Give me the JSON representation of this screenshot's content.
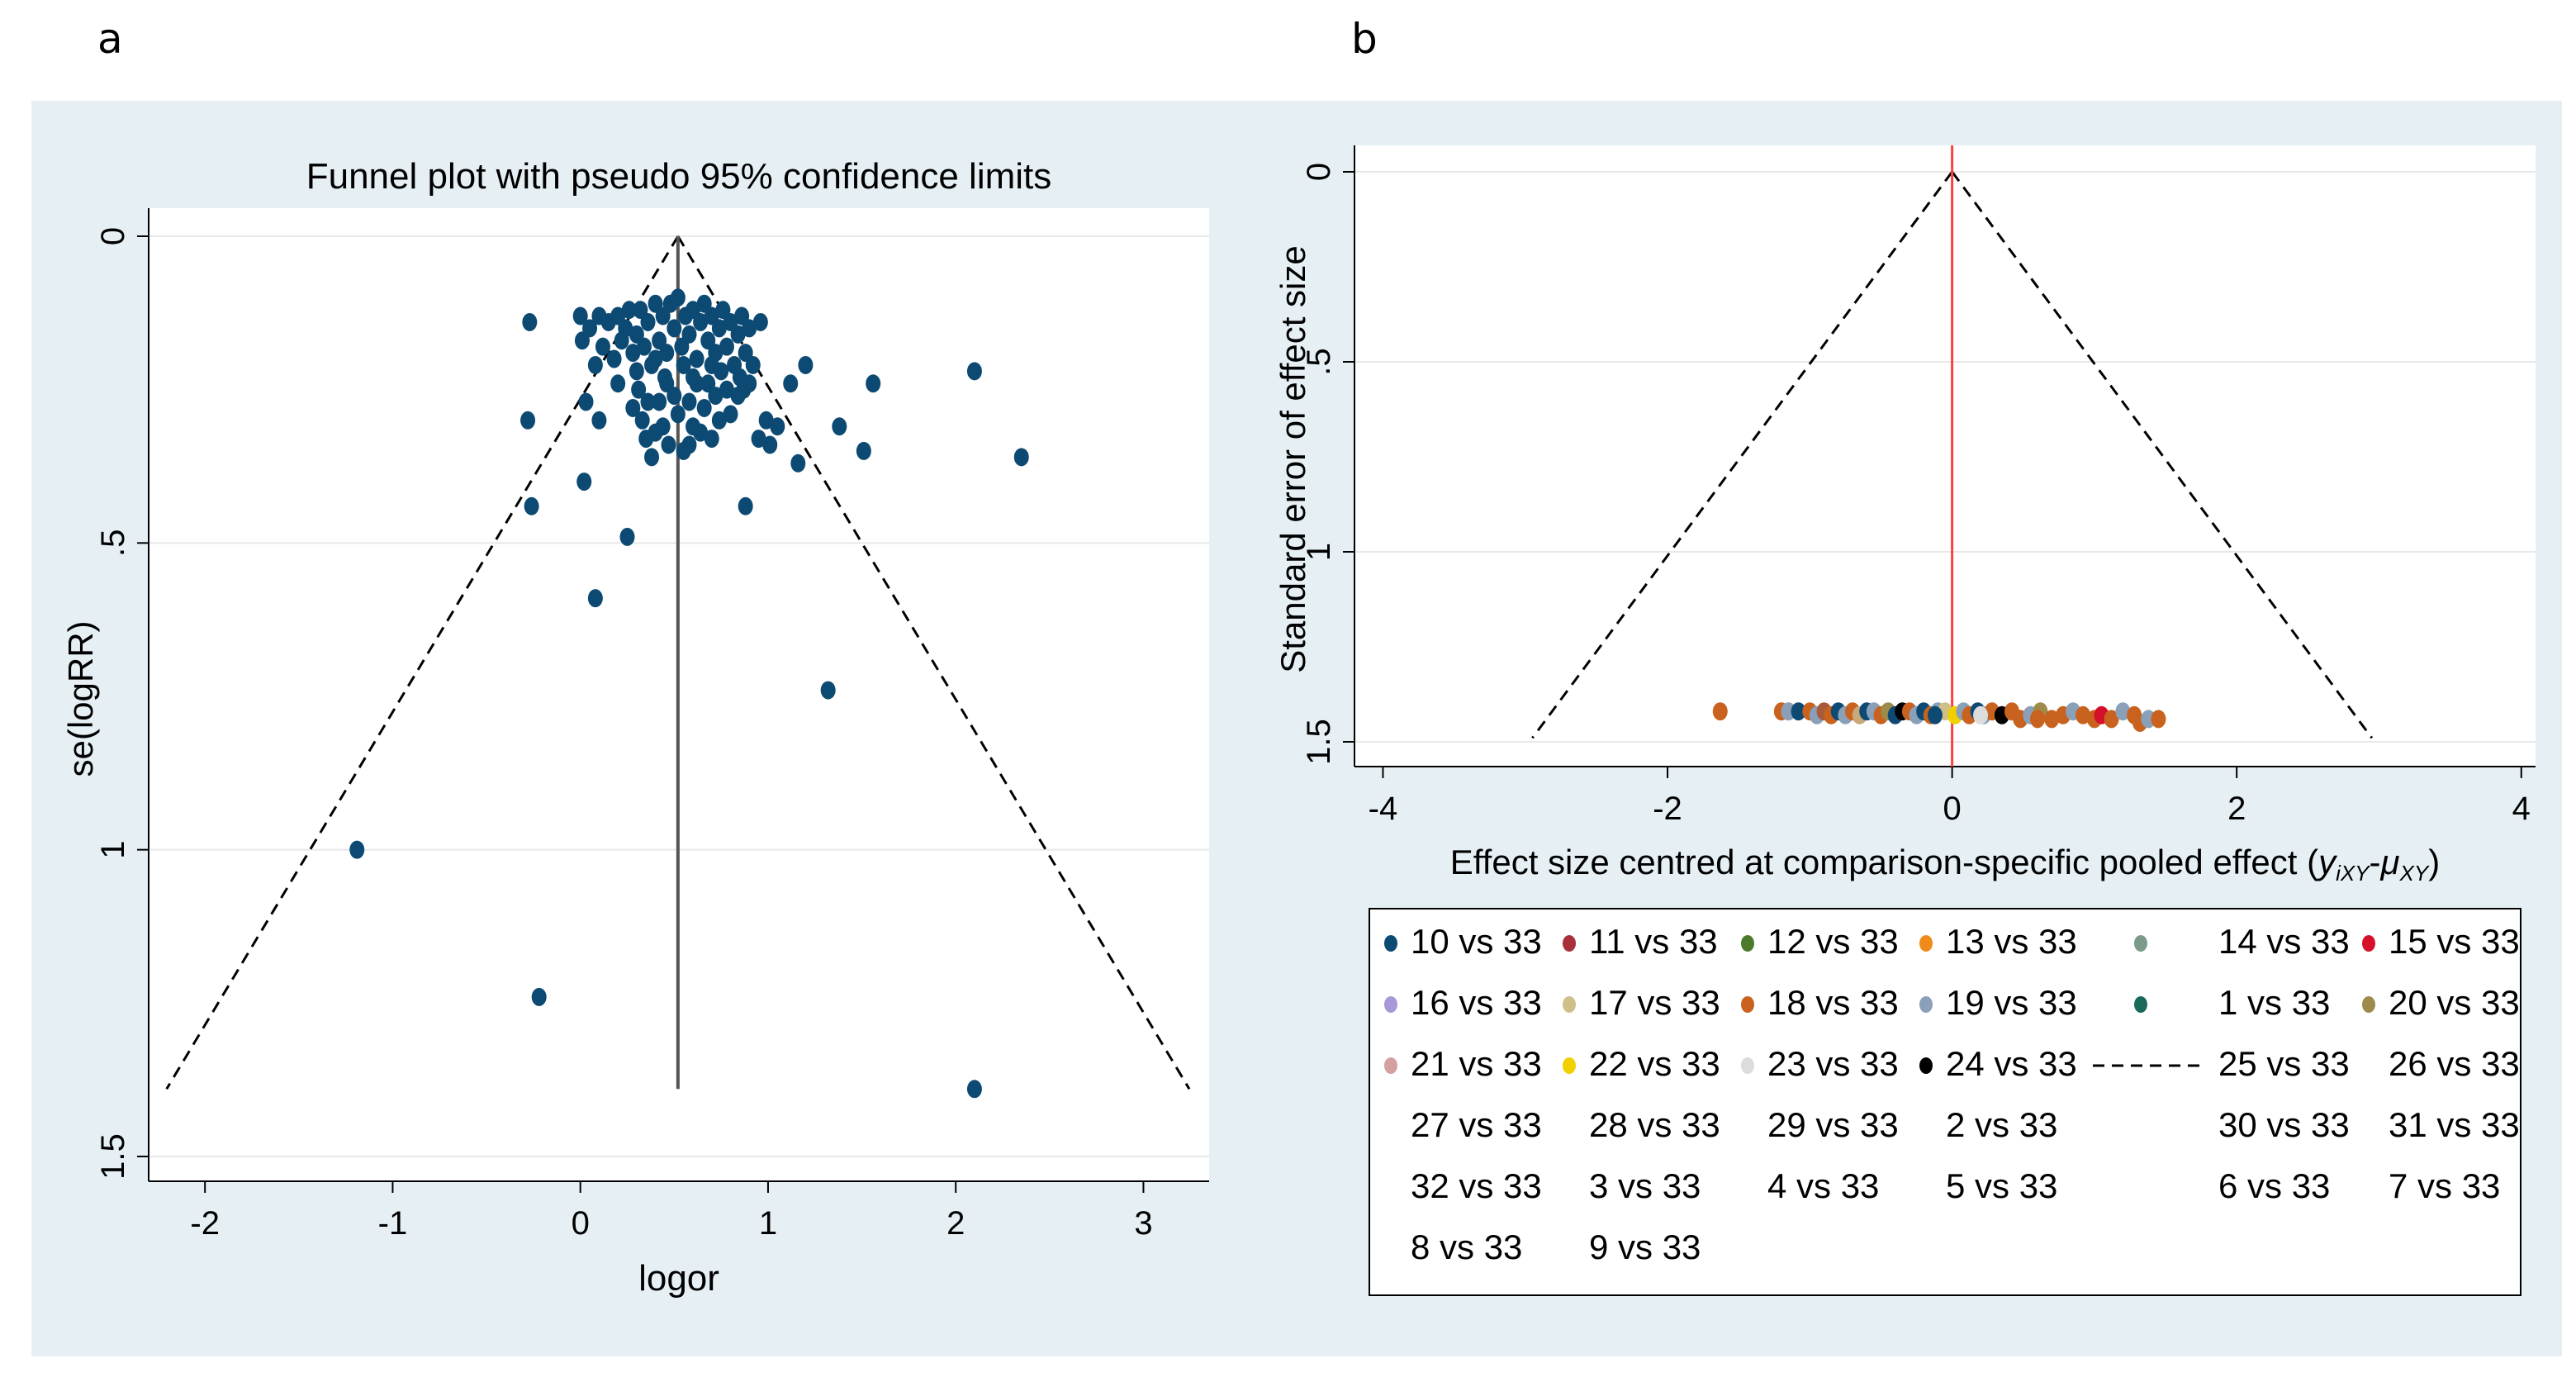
{
  "panels": {
    "a": "a",
    "b": "b"
  },
  "chart_data": [
    {
      "type": "scatter",
      "title": "Funnel plot with pseudo 95% confidence limits",
      "xlabel": "logor",
      "ylabel": "se(logRR)",
      "xlim": [
        -2.3,
        3.35
      ],
      "ylim": [
        0,
        1.5
      ],
      "y_reversed": true,
      "xticks": [
        "-2",
        "-1",
        "0",
        "1",
        "2",
        "3"
      ],
      "yticks": [
        "0",
        ".5",
        "1",
        "1.5"
      ],
      "pooled_effect": 0.52,
      "funnel_bottom_se": 1.39,
      "point_color": "#0d4a73",
      "points": [
        [
          -0.27,
          0.14
        ],
        [
          -0.28,
          0.3
        ],
        [
          -0.26,
          0.44
        ],
        [
          -1.19,
          1.0
        ],
        [
          -0.22,
          1.24
        ],
        [
          0.02,
          0.4
        ],
        [
          0.08,
          0.59
        ],
        [
          0.25,
          0.49
        ],
        [
          0.88,
          0.44
        ],
        [
          1.32,
          0.74
        ],
        [
          2.1,
          1.39
        ],
        [
          2.1,
          0.22
        ],
        [
          2.35,
          0.36
        ],
        [
          1.56,
          0.24
        ],
        [
          1.51,
          0.35
        ],
        [
          1.38,
          0.31
        ],
        [
          1.16,
          0.37
        ],
        [
          1.2,
          0.21
        ],
        [
          1.12,
          0.24
        ],
        [
          1.05,
          0.31
        ],
        [
          0.99,
          0.3
        ],
        [
          0.95,
          0.33
        ],
        [
          1.01,
          0.34
        ],
        [
          0.0,
          0.13
        ],
        [
          0.01,
          0.17
        ],
        [
          0.05,
          0.15
        ],
        [
          0.08,
          0.21
        ],
        [
          0.1,
          0.13
        ],
        [
          0.12,
          0.18
        ],
        [
          0.15,
          0.14
        ],
        [
          0.18,
          0.2
        ],
        [
          0.2,
          0.13
        ],
        [
          0.22,
          0.17
        ],
        [
          0.24,
          0.15
        ],
        [
          0.26,
          0.12
        ],
        [
          0.28,
          0.19
        ],
        [
          0.3,
          0.16
        ],
        [
          0.32,
          0.12
        ],
        [
          0.34,
          0.18
        ],
        [
          0.36,
          0.14
        ],
        [
          0.38,
          0.21
        ],
        [
          0.4,
          0.11
        ],
        [
          0.42,
          0.17
        ],
        [
          0.44,
          0.13
        ],
        [
          0.46,
          0.19
        ],
        [
          0.48,
          0.11
        ],
        [
          0.5,
          0.15
        ],
        [
          0.52,
          0.1
        ],
        [
          0.54,
          0.18
        ],
        [
          0.56,
          0.13
        ],
        [
          0.58,
          0.16
        ],
        [
          0.6,
          0.12
        ],
        [
          0.62,
          0.2
        ],
        [
          0.64,
          0.14
        ],
        [
          0.66,
          0.11
        ],
        [
          0.68,
          0.17
        ],
        [
          0.7,
          0.13
        ],
        [
          0.72,
          0.19
        ],
        [
          0.74,
          0.15
        ],
        [
          0.76,
          0.12
        ],
        [
          0.78,
          0.18
        ],
        [
          0.8,
          0.14
        ],
        [
          0.82,
          0.21
        ],
        [
          0.84,
          0.16
        ],
        [
          0.86,
          0.13
        ],
        [
          0.88,
          0.19
        ],
        [
          0.9,
          0.15
        ],
        [
          0.92,
          0.21
        ],
        [
          0.96,
          0.14
        ],
        [
          0.3,
          0.22
        ],
        [
          0.45,
          0.23
        ],
        [
          0.6,
          0.23
        ],
        [
          0.75,
          0.22
        ],
        [
          0.85,
          0.23
        ],
        [
          0.4,
          0.2
        ],
        [
          0.55,
          0.21
        ],
        [
          0.7,
          0.21
        ],
        [
          0.03,
          0.27
        ],
        [
          0.1,
          0.3
        ],
        [
          0.31,
          0.25
        ],
        [
          0.33,
          0.3
        ],
        [
          0.35,
          0.33
        ],
        [
          0.38,
          0.36
        ],
        [
          0.42,
          0.27
        ],
        [
          0.44,
          0.31
        ],
        [
          0.47,
          0.34
        ],
        [
          0.5,
          0.26
        ],
        [
          0.52,
          0.29
        ],
        [
          0.55,
          0.35
        ],
        [
          0.58,
          0.27
        ],
        [
          0.6,
          0.31
        ],
        [
          0.62,
          0.24
        ],
        [
          0.66,
          0.28
        ],
        [
          0.7,
          0.33
        ],
        [
          0.72,
          0.26
        ],
        [
          0.74,
          0.3
        ],
        [
          0.78,
          0.25
        ],
        [
          0.8,
          0.29
        ],
        [
          0.84,
          0.26
        ],
        [
          0.87,
          0.25
        ],
        [
          0.9,
          0.24
        ],
        [
          0.2,
          0.24
        ],
        [
          0.28,
          0.28
        ],
        [
          0.46,
          0.24
        ],
        [
          0.64,
          0.32
        ],
        [
          0.36,
          0.27
        ],
        [
          0.68,
          0.24
        ],
        [
          0.58,
          0.34
        ],
        [
          0.4,
          0.32
        ]
      ]
    },
    {
      "type": "scatter",
      "xlabel": "Effect size centred at comparison-specific pooled effect (",
      "xlabel_math": "y",
      "xlabel_sub1": "iXY",
      "xlabel_minus": "-",
      "xlabel_mu": "μ",
      "xlabel_sub2": "XY",
      "xlabel_end": ")",
      "ylabel": "Standard error of effect size",
      "xlim": [
        -4.2,
        4.1
      ],
      "ylim": [
        0,
        1.5
      ],
      "y_reversed": true,
      "xticks": [
        "-4",
        "-2",
        "0",
        "2",
        "4"
      ],
      "yticks": [
        "0",
        ".5",
        "1",
        "1.5"
      ],
      "ref_line_color": "#ff4040",
      "funnel_half_width_at_bottom": 2.95,
      "funnel_bottom_se": 1.49,
      "points": [
        [
          -1.63,
          1.42,
          "#c8621e"
        ],
        [
          -1.2,
          1.42,
          "#c8621e"
        ],
        [
          -1.15,
          1.42,
          "#8aa0b8"
        ],
        [
          -1.08,
          1.42,
          "#0d4a73"
        ],
        [
          -1.0,
          1.42,
          "#c8621e"
        ],
        [
          -0.95,
          1.43,
          "#8aa0b8"
        ],
        [
          -0.9,
          1.42,
          "#a85a3a"
        ],
        [
          -0.85,
          1.43,
          "#c8621e"
        ],
        [
          -0.8,
          1.42,
          "#0d4a73"
        ],
        [
          -0.75,
          1.43,
          "#8aa0b8"
        ],
        [
          -0.7,
          1.42,
          "#c8621e"
        ],
        [
          -0.65,
          1.43,
          "#c9a87a"
        ],
        [
          -0.6,
          1.42,
          "#0d4a73"
        ],
        [
          -0.55,
          1.42,
          "#8aa0b8"
        ],
        [
          -0.5,
          1.43,
          "#c8621e"
        ],
        [
          -0.45,
          1.42,
          "#9e8a4a"
        ],
        [
          -0.4,
          1.43,
          "#0d4a73"
        ],
        [
          -0.35,
          1.42,
          "#000000"
        ],
        [
          -0.3,
          1.42,
          "#c8621e"
        ],
        [
          -0.25,
          1.43,
          "#8aa0b8"
        ],
        [
          -0.2,
          1.42,
          "#0d4a73"
        ],
        [
          -0.15,
          1.43,
          "#c8621e"
        ],
        [
          -0.1,
          1.42,
          "#8aa0b8"
        ],
        [
          -0.05,
          1.42,
          "#cfc08a"
        ],
        [
          0.02,
          1.43,
          "#f0d000"
        ],
        [
          0.08,
          1.42,
          "#8aa0b8"
        ],
        [
          0.12,
          1.43,
          "#c8621e"
        ],
        [
          0.18,
          1.42,
          "#0d4a73"
        ],
        [
          0.22,
          1.43,
          "#8aa0b8"
        ],
        [
          0.28,
          1.42,
          "#c8621e"
        ],
        [
          0.35,
          1.43,
          "#000000"
        ],
        [
          0.42,
          1.42,
          "#c8621e"
        ],
        [
          0.48,
          1.44,
          "#c8621e"
        ],
        [
          0.55,
          1.43,
          "#8aa0b8"
        ],
        [
          0.62,
          1.42,
          "#9e8a4a"
        ],
        [
          0.7,
          1.44,
          "#c8621e"
        ],
        [
          0.78,
          1.43,
          "#c8621e"
        ],
        [
          0.85,
          1.42,
          "#8aa0b8"
        ],
        [
          0.92,
          1.43,
          "#c8621e"
        ],
        [
          1.0,
          1.44,
          "#c8621e"
        ],
        [
          1.05,
          1.43,
          "#d4102a"
        ],
        [
          1.12,
          1.44,
          "#c8621e"
        ],
        [
          1.2,
          1.42,
          "#8aa0b8"
        ],
        [
          1.28,
          1.43,
          "#c8621e"
        ],
        [
          1.32,
          1.45,
          "#c8621e"
        ],
        [
          1.38,
          1.44,
          "#8aa0b8"
        ],
        [
          1.45,
          1.44,
          "#c8621e"
        ],
        [
          0.2,
          1.43,
          "#dcdcdc"
        ],
        [
          -0.12,
          1.43,
          "#0d4a73"
        ],
        [
          0.6,
          1.44,
          "#c8621e"
        ]
      ],
      "legend": [
        {
          "label": "10 vs 33",
          "marker": "dot",
          "color": "#0d4a73"
        },
        {
          "label": "11 vs 33",
          "marker": "dot",
          "color": "#a8303a"
        },
        {
          "label": "12 vs 33",
          "marker": "dot",
          "color": "#4a7a2a"
        },
        {
          "label": "13 vs 33",
          "marker": "dot",
          "color": "#f08a1a"
        },
        {
          "label": "14 vs 33",
          "marker": "dot",
          "color": "#7a9a8a"
        },
        {
          "label": "15 vs 33",
          "marker": "dot",
          "color": "#d4102a"
        },
        {
          "label": "16 vs 33",
          "marker": "dot",
          "color": "#a898d8"
        },
        {
          "label": "17 vs 33",
          "marker": "dot",
          "color": "#cfc08a"
        },
        {
          "label": "18 vs 33",
          "marker": "dot",
          "color": "#c8621e"
        },
        {
          "label": "19 vs 33",
          "marker": "dot",
          "color": "#8aa0b8"
        },
        {
          "label": "1 vs 33",
          "marker": "dot",
          "color": "#1a6a5a"
        },
        {
          "label": "20 vs 33",
          "marker": "dot",
          "color": "#9e8a4a"
        },
        {
          "label": "21 vs 33",
          "marker": "dot",
          "color": "#d4a0a0"
        },
        {
          "label": "22 vs 33",
          "marker": "dot",
          "color": "#f0d000"
        },
        {
          "label": "23 vs 33",
          "marker": "dot",
          "color": "#dcdcdc"
        },
        {
          "label": "24 vs 33",
          "marker": "dot",
          "color": "#000000"
        },
        {
          "label": "25 vs 33",
          "marker": "dash",
          "color": "#000000"
        },
        {
          "label": "26 vs 33",
          "marker": "none",
          "color": ""
        },
        {
          "label": "27 vs 33",
          "marker": "none",
          "color": ""
        },
        {
          "label": "28 vs 33",
          "marker": "none",
          "color": ""
        },
        {
          "label": "29 vs 33",
          "marker": "none",
          "color": ""
        },
        {
          "label": "2 vs 33",
          "marker": "none",
          "color": ""
        },
        {
          "label": "30 vs 33",
          "marker": "none",
          "color": ""
        },
        {
          "label": "31 vs 33",
          "marker": "none",
          "color": ""
        },
        {
          "label": "32 vs 33",
          "marker": "none",
          "color": ""
        },
        {
          "label": "3 vs 33",
          "marker": "none",
          "color": ""
        },
        {
          "label": "4 vs 33",
          "marker": "none",
          "color": ""
        },
        {
          "label": "5 vs 33",
          "marker": "none",
          "color": ""
        },
        {
          "label": "6 vs 33",
          "marker": "none",
          "color": ""
        },
        {
          "label": "7 vs 33",
          "marker": "none",
          "color": ""
        },
        {
          "label": "8 vs 33",
          "marker": "none",
          "color": ""
        },
        {
          "label": "9 vs 33",
          "marker": "none",
          "color": ""
        }
      ]
    }
  ]
}
